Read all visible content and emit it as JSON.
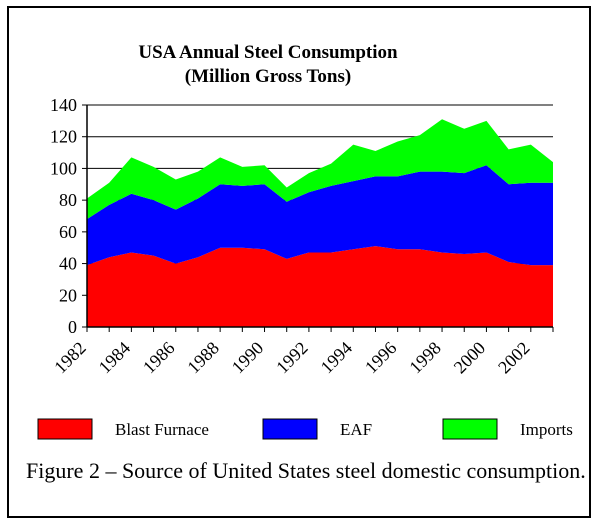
{
  "chart_data": {
    "type": "area",
    "stacked": true,
    "title": "USA Annual Steel Consumption",
    "subtitle": "(Million Gross Tons)",
    "x": [
      1982,
      1983,
      1984,
      1985,
      1986,
      1987,
      1988,
      1989,
      1990,
      1991,
      1992,
      1993,
      1994,
      1995,
      1996,
      1997,
      1998,
      1999,
      2000,
      2001,
      2002,
      2003
    ],
    "x_tick_labels": [
      "1982",
      "1984",
      "1986",
      "1988",
      "1990",
      "1992",
      "1994",
      "1996",
      "1998",
      "2000",
      "2002"
    ],
    "ylim": [
      0,
      140
    ],
    "y_ticks": [
      0,
      20,
      40,
      60,
      80,
      100,
      120,
      140
    ],
    "grid": "horizontal",
    "legend_position": "bottom",
    "series": [
      {
        "name": "Blast Furnace",
        "color": "#ff0000",
        "values": [
          39,
          44,
          47,
          45,
          40,
          44,
          50,
          50,
          49,
          43,
          47,
          47,
          49,
          51,
          49,
          49,
          47,
          46,
          47,
          41,
          39,
          39
        ]
      },
      {
        "name": "EAF",
        "color": "#0000ff",
        "values": [
          29,
          33,
          37,
          35,
          34,
          37,
          40,
          39,
          41,
          36,
          38,
          42,
          43,
          44,
          46,
          49,
          51,
          51,
          55,
          49,
          52,
          52
        ]
      },
      {
        "name": "Imports",
        "color": "#00ff00",
        "values": [
          13,
          14,
          23,
          21,
          19,
          17,
          17,
          12,
          12,
          9,
          12,
          14,
          23,
          16,
          22,
          23,
          33,
          28,
          28,
          22,
          24,
          13
        ]
      }
    ]
  },
  "caption": {
    "text": "Figure 2 – Source of United States steel domestic consumption."
  }
}
